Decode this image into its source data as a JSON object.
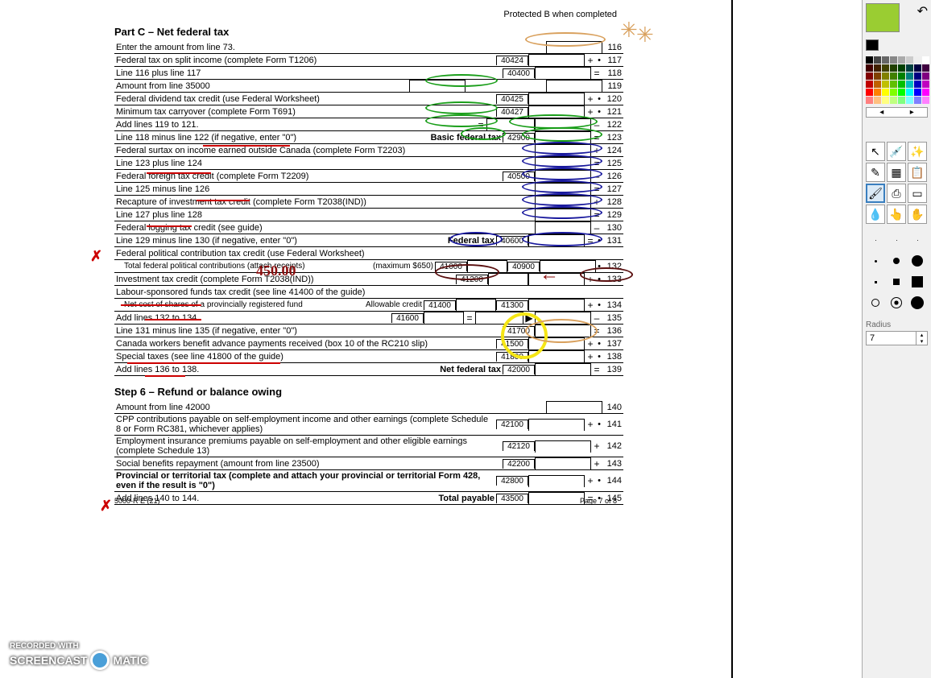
{
  "header": "Protected B when completed",
  "partC": {
    "title": "Part C – Net federal tax",
    "lines": [
      {
        "label": "Enter the amount from line 73.",
        "rnum": "116"
      },
      {
        "label": "Federal tax on split income (complete Form T1206)",
        "code": "40424",
        "op": "+",
        "dot": "•",
        "rnum": "117"
      },
      {
        "label": "Line 116 plus line 117",
        "code": "40400",
        "op": "=",
        "rnum": "118"
      },
      {
        "label": "Amount from line 35000",
        "mid": true,
        "rnum": "119"
      },
      {
        "label": "Federal dividend tax credit (use Federal Worksheet)",
        "code": "40425",
        "op": "+",
        "dot": "•",
        "rnum": "120"
      },
      {
        "label": "Minimum tax carryover (complete Form T691)",
        "code": "40427",
        "op": "+",
        "dot": "•",
        "rnum": "121"
      },
      {
        "label": "Add lines 119 to 121.",
        "mideq": "=",
        "rightop": "–",
        "rnum": "122"
      },
      {
        "label": "Line 118 minus line 122 (if negative, enter \"0\")",
        "rlabel": "Basic federal tax",
        "code": "42900",
        "op": "=",
        "rnum": "123"
      },
      {
        "label": "Federal surtax on income earned outside Canada (complete Form T2203)",
        "op": "+",
        "rnum": "124"
      },
      {
        "label": "Line 123 plus line 124",
        "op": "=",
        "rnum": "125"
      },
      {
        "label": "Federal foreign tax credit (complete Form T2209)",
        "code": "40500",
        "op": "–",
        "rnum": "126"
      },
      {
        "label": "Line 125 minus line 126",
        "op": "=",
        "rnum": "127"
      },
      {
        "label": "Recapture of investment tax credit (complete Form T2038(IND))",
        "op": "+",
        "rnum": "128"
      },
      {
        "label": "Line 127 plus line 128",
        "op": "=",
        "rnum": "129"
      },
      {
        "label": "Federal logging tax credit (see guide)",
        "op": "–",
        "rnum": "130"
      },
      {
        "label": "Line 129 minus line 130 (if negative, enter \"0\")",
        "rlabel": "Federal tax",
        "code": "40600",
        "op": "=",
        "dot": "•",
        "rnum": "131"
      },
      {
        "label": "Federal political contribution tax credit (use Federal Worksheet)"
      },
      {
        "label": "Total federal political contributions (attach receipts)",
        "indent": true,
        "code": "40900",
        "mlabel": "(maximum $650)",
        "code2": "41000",
        "dot": "•",
        "rnum": "132"
      },
      {
        "label": "Investment tax credit (complete Form T2038(IND))",
        "code2": "41200",
        "op": "+",
        "dot": "•",
        "rnum": "133"
      },
      {
        "label": "Labour-sponsored funds tax credit (see line 41400 of the guide)"
      },
      {
        "label": "Net cost of shares of a provincially registered fund",
        "indent": true,
        "code": "41300",
        "mlabel": "Allowable credit",
        "code2": "41400",
        "op": "+",
        "dot": "•",
        "rnum": "134"
      },
      {
        "label": "Add lines 132 to 134.",
        "code2": "41600",
        "mideq": "=",
        "righttri": "▶",
        "rightop": "–",
        "rnum": "135"
      },
      {
        "label": "Line 131 minus line 135 (if negative, enter \"0\")",
        "code": "41700",
        "op": "=",
        "rnum": "136"
      },
      {
        "label": "Canada workers benefit advance payments received (box 10 of the RC210 slip)",
        "code": "41500",
        "op": "+",
        "dot": "•",
        "rnum": "137"
      },
      {
        "label": "Special taxes (see line 41800 of the guide)",
        "code": "41800",
        "op": "+",
        "dot": "•",
        "rnum": "138"
      },
      {
        "label": "Add lines 136 to 138.",
        "rlabel": "Net federal tax",
        "code": "42000",
        "op": "=",
        "rnum": "139"
      }
    ]
  },
  "step6": {
    "title": "Step 6 – Refund or balance owing",
    "lines": [
      {
        "label": "Amount from line 42000",
        "rnum": "140"
      },
      {
        "label": "CPP contributions payable on self-employment income and other earnings (complete Schedule 8 or Form RC381, whichever applies)",
        "code": "42100",
        "op": "+",
        "dot": "•",
        "rnum": "141"
      },
      {
        "label": "Employment insurance premiums payable on self-employment and other eligible earnings (complete Schedule 13)",
        "code": "42120",
        "op": "+",
        "rnum": "142"
      },
      {
        "label": "Social benefits repayment (amount from line 23500)",
        "code": "42200",
        "op": "+",
        "rnum": "143"
      },
      {
        "label": "Provincial or territorial tax (complete and attach your provincial or territorial Form 428, even if the result is \"0\")",
        "bold": true,
        "code": "42800",
        "op": "+",
        "dot": "•",
        "rnum": "144"
      },
      {
        "label": "Add lines 140 to 144.",
        "rlabel": "Total payable",
        "code": "43500",
        "op": "=",
        "dot": "•",
        "rnum": "145"
      }
    ]
  },
  "footer": {
    "left": "5000-R E (21)",
    "right": "Page 7 of 8"
  },
  "handwriting": "450.00",
  "toolbox": {
    "current_color": "#9acd32",
    "fg": "#000000",
    "bg": "#ffffff",
    "palette": [
      "#000000",
      "#444444",
      "#666666",
      "#888888",
      "#aaaaaa",
      "#cccccc",
      "#eeeeee",
      "#ffffff",
      "#400000",
      "#402000",
      "#404000",
      "#204000",
      "#004000",
      "#004040",
      "#000040",
      "#400040",
      "#800000",
      "#804000",
      "#808000",
      "#408000",
      "#008000",
      "#008080",
      "#000080",
      "#800080",
      "#c00000",
      "#c06000",
      "#c0c000",
      "#60c000",
      "#00c000",
      "#00c0c0",
      "#0000c0",
      "#c000c0",
      "#ff0000",
      "#ff8000",
      "#ffff00",
      "#80ff00",
      "#00ff00",
      "#00ffff",
      "#0000ff",
      "#ff00ff",
      "#ff8080",
      "#ffc080",
      "#ffff80",
      "#c0ff80",
      "#80ff80",
      "#80ffff",
      "#8080ff",
      "#ff80ff"
    ],
    "radius_label": "Radius",
    "radius_value": "7"
  },
  "watermark": {
    "top": "RECORDED WITH",
    "name": "SCREENCAST  MATIC"
  },
  "annotations": {
    "colors": {
      "green": "#1a9e1a",
      "blue": "#1a1a9e",
      "red": "#c00000",
      "darkred": "#5a0f0f",
      "orange": "#d9a15e",
      "yellow": "#f5e615"
    }
  }
}
